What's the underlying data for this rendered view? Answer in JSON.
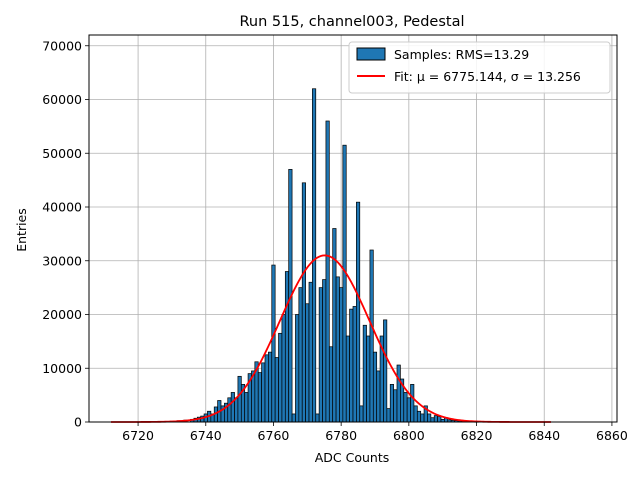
{
  "chart_data": {
    "type": "bar",
    "title": "Run 515, channel003, Pedestal",
    "xlabel": "ADC Counts",
    "ylabel": "Entries",
    "xlim": [
      6705.5,
      6861.5
    ],
    "ylim": [
      0,
      72000
    ],
    "x_ticks": [
      6720,
      6740,
      6760,
      6780,
      6800,
      6820,
      6840,
      6860
    ],
    "y_ticks": [
      0,
      10000,
      20000,
      30000,
      40000,
      50000,
      60000,
      70000
    ],
    "grid": true,
    "legend_position": "top-right",
    "series": [
      {
        "name": "Samples: RMS=13.29",
        "kind": "histogram",
        "color": "#1f77b4",
        "edgecolor": "#000000",
        "bins": [
          6728,
          6730,
          6732,
          6734,
          6736,
          6737,
          6738,
          6739,
          6740,
          6741,
          6742,
          6743,
          6744,
          6745,
          6746,
          6747,
          6748,
          6749,
          6750,
          6751,
          6752,
          6753,
          6754,
          6755,
          6756,
          6757,
          6758,
          6759,
          6760,
          6761,
          6762,
          6763,
          6764,
          6765,
          6766,
          6767,
          6768,
          6769,
          6770,
          6771,
          6772,
          6773,
          6774,
          6775,
          6776,
          6777,
          6778,
          6779,
          6780,
          6781,
          6782,
          6783,
          6784,
          6785,
          6786,
          6787,
          6788,
          6789,
          6790,
          6791,
          6792,
          6793,
          6794,
          6795,
          6796,
          6797,
          6798,
          6799,
          6800,
          6801,
          6802,
          6803,
          6804,
          6805,
          6806,
          6807,
          6808,
          6809,
          6810,
          6811,
          6812,
          6813,
          6814,
          6815,
          6816,
          6818,
          6820
        ],
        "counts": [
          100,
          150,
          250,
          350,
          500,
          700,
          900,
          1100,
          1500,
          2000,
          1500,
          2800,
          4000,
          3000,
          3500,
          4500,
          5500,
          4500,
          8500,
          7000,
          5500,
          9000,
          9500,
          11200,
          9200,
          11000,
          12500,
          13000,
          29200,
          12000,
          16500,
          20000,
          28000,
          47000,
          1500,
          20000,
          25000,
          44500,
          22000,
          26000,
          62000,
          1500,
          25000,
          26500,
          56000,
          14000,
          36000,
          27000,
          25000,
          51500,
          16000,
          21000,
          21500,
          40900,
          3000,
          18000,
          16000,
          32000,
          13000,
          9500,
          16000,
          19000,
          2500,
          7000,
          6000,
          10600,
          8000,
          5500,
          4500,
          7000,
          3000,
          2000,
          1500,
          3000,
          1500,
          800,
          1200,
          1000,
          500,
          800,
          400,
          300,
          250,
          200,
          150,
          100,
          50
        ]
      },
      {
        "name": "Fit: μ = 6775.144, σ = 13.256",
        "kind": "gaussian-fit",
        "color": "#ff0000",
        "mu": 6775.144,
        "sigma": 13.256,
        "amplitude": 31000,
        "x_range": [
          6712,
          6842
        ]
      }
    ]
  }
}
